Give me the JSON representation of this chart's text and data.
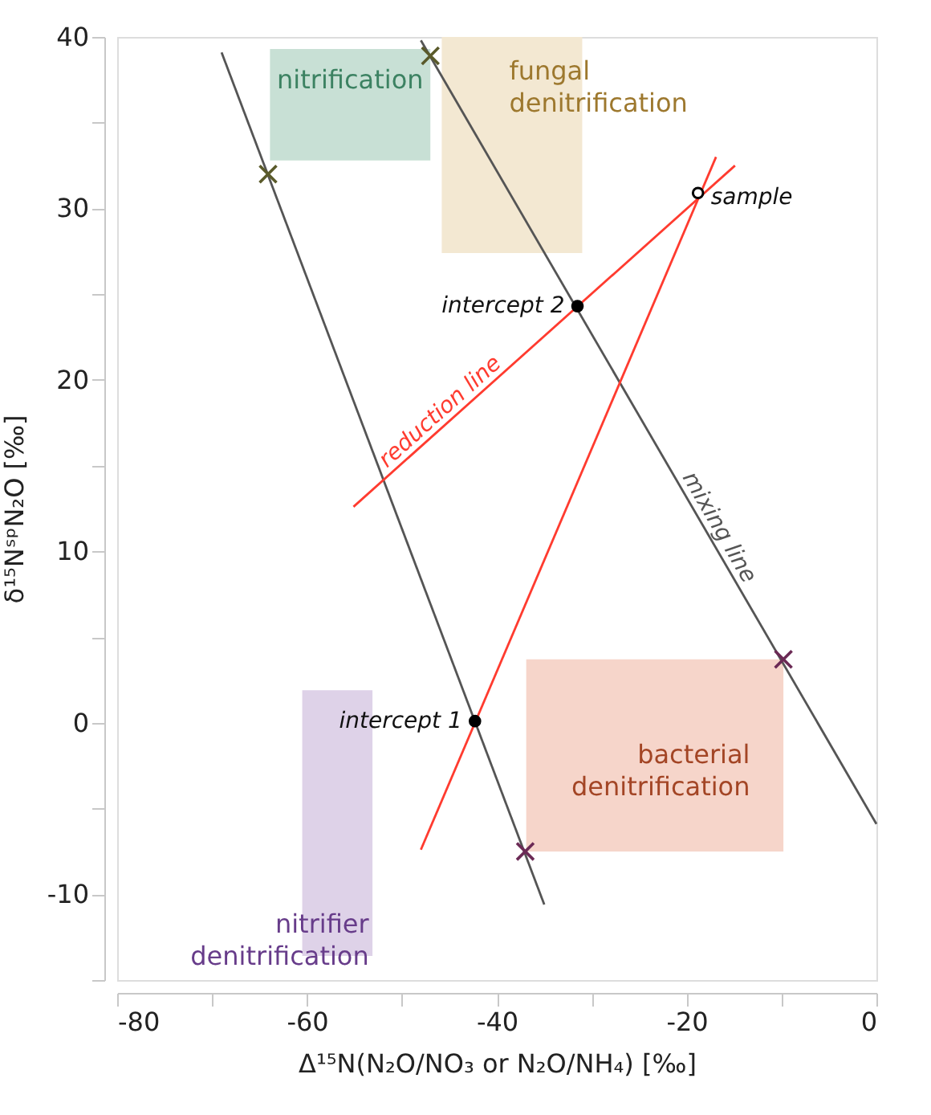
{
  "chart_data": {
    "type": "line",
    "xlabel": "Δ¹⁵N(N₂O/NO₃ or N₂O/NH₄) [‰]",
    "ylabel": "δ¹⁵NˢᵖN₂O [‰]",
    "xlim": [
      -80,
      0
    ],
    "ylim": [
      -15,
      40
    ],
    "xticks": [
      -80,
      {
        "value": -70,
        "label": null
      },
      -60,
      {
        "value": -50,
        "label": null
      },
      -40,
      {
        "value": -30,
        "label": null
      },
      -20,
      {
        "value": -10,
        "label": null
      },
      0
    ],
    "yticks": [
      {
        "value": -15,
        "label": null
      },
      -10,
      {
        "value": -5,
        "label": null
      },
      0,
      {
        "value": 5,
        "label": null
      },
      10,
      {
        "value": 15,
        "label": null
      },
      20,
      {
        "value": 25,
        "label": null
      },
      30,
      {
        "value": 35,
        "label": null
      },
      40
    ],
    "grid": false,
    "series": [
      {
        "color": "#c8e0d5",
        "x": [
          -63.9,
          -47.0
        ],
        "values": [
          null,
          null
        ],
        "lower": [
          32.8,
          32.8
        ],
        "upper": [
          39.3,
          39.3
        ]
      },
      {
        "color": "#f3e8d2",
        "x": [
          -45.8,
          -31.0
        ],
        "values": [
          null,
          null
        ],
        "lower": [
          27.4,
          27.4
        ],
        "upper": [
          40.0,
          40.0
        ]
      },
      {
        "color": "#ded2e8",
        "x": [
          -60.5,
          -53.1
        ],
        "values": [
          null,
          null
        ],
        "lower": [
          -13.6,
          -13.6
        ],
        "upper": [
          1.9,
          1.9
        ]
      },
      {
        "color": "#f6d5ca",
        "x": [
          -36.9,
          -9.8
        ],
        "values": [
          null,
          null
        ],
        "lower": [
          -7.5,
          -7.5
        ],
        "upper": [
          3.7,
          3.7
        ]
      },
      {
        "color": "#555555",
        "x": [
          -69.0,
          -35.0
        ],
        "values": [
          39.1,
          -10.6
        ]
      },
      {
        "name": "mixing line",
        "color": "#555555",
        "x": [
          -48.0,
          0.0
        ],
        "values": [
          39.8,
          -5.9
        ]
      },
      {
        "name": "reduction line",
        "color": "#ff3b2f",
        "x": [
          -55.1,
          -14.9
        ],
        "values": [
          12.6,
          32.5
        ]
      },
      {
        "color": "#ff3b2f",
        "x": [
          -48.0,
          -16.9
        ],
        "values": [
          -7.4,
          33.0
        ]
      },
      {
        "type": "scatter",
        "marker": "cross",
        "color": "#5a5a2a",
        "x": [
          -64.1,
          -47.0
        ],
        "values": [
          32.0,
          38.9
        ]
      },
      {
        "type": "scatter",
        "marker": "cross",
        "color": "#6b2a55",
        "x": [
          -9.8,
          -37.0
        ],
        "values": [
          3.7,
          -7.5
        ]
      },
      {
        "type": "scatter",
        "marker": "circle",
        "color": "#000000",
        "x": [
          -42.3,
          -31.5
        ],
        "values": [
          0.1,
          24.3
        ]
      },
      {
        "type": "scatter",
        "marker": "circle",
        "color": "#ffffff",
        "x": [
          -18.8
        ],
        "values": [
          30.9
        ]
      }
    ],
    "annotations": [
      "nitrification",
      "fungal denitrification",
      "nitrifier denitrification",
      "bacterial denitrification",
      {
        "text": "intercept 1",
        "x": -42.3,
        "y": 0.1
      },
      {
        "text": "intercept 2",
        "x": -31.5,
        "y": 24.3
      },
      {
        "text": "sample",
        "x": -18.8,
        "y": 30.9
      }
    ]
  }
}
